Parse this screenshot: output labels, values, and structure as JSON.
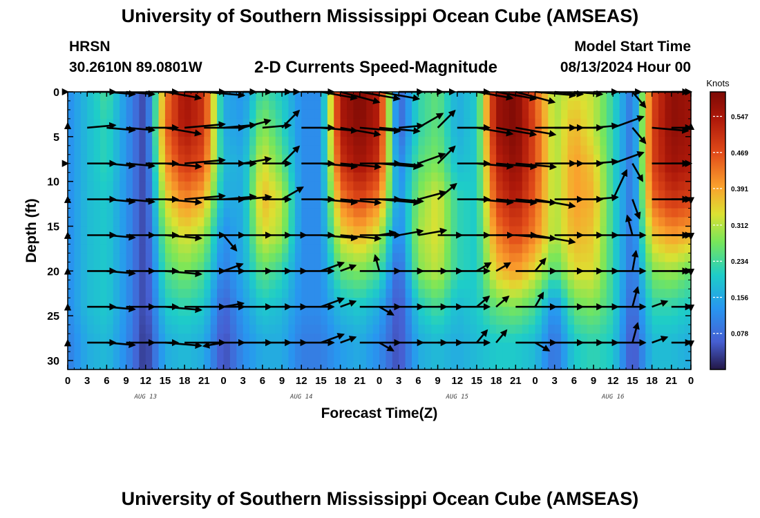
{
  "header": {
    "title": "University of Southern Mississippi Ocean Cube (AMSEAS)",
    "station": "HRSN",
    "coords": "30.2610N  89.0801W",
    "subtitle": "2-D Currents Speed-Magnitude",
    "model_label": "Model Start Time",
    "model_start": "08/13/2024 Hour 00"
  },
  "footer": {
    "title": "University of Southern Mississippi Ocean Cube (AMSEAS)"
  },
  "chart_data": {
    "type": "heatmap",
    "title": "2-D Currents Speed-Magnitude",
    "xlabel": "Forecast Time(Z)",
    "ylabel": "Depth (ft)",
    "xlim": [
      0,
      96
    ],
    "ylim": [
      31,
      0
    ],
    "x_ticks": [
      0,
      3,
      6,
      9,
      12,
      15,
      18,
      21,
      24,
      27,
      30,
      33,
      36,
      39,
      42,
      45,
      48,
      51,
      54,
      57,
      60,
      63,
      66,
      69,
      72,
      75,
      78,
      81,
      84,
      87,
      90,
      93,
      96
    ],
    "x_tick_labels": [
      "0",
      "3",
      "6",
      "9",
      "12",
      "15",
      "18",
      "21",
      "0",
      "3",
      "6",
      "9",
      "12",
      "15",
      "18",
      "21",
      "0",
      "3",
      "6",
      "9",
      "12",
      "15",
      "18",
      "21",
      "0",
      "3",
      "6",
      "9",
      "12",
      "15",
      "18",
      "21",
      "0"
    ],
    "y_ticks": [
      0,
      5,
      10,
      15,
      20,
      25,
      30
    ],
    "y_tick_labels": [
      "0",
      "5",
      "10",
      "15",
      "20",
      "25",
      "30"
    ],
    "date_labels": [
      {
        "hour": 12,
        "label": "AUG 13"
      },
      {
        "hour": 36,
        "label": "AUG 14"
      },
      {
        "hour": 60,
        "label": "AUG 15"
      },
      {
        "hour": 84,
        "label": "AUG 16"
      }
    ],
    "colorbar": {
      "label": "Knots",
      "min": 0,
      "max": 0.6,
      "ticks": [
        0.078,
        0.156,
        0.234,
        0.312,
        0.391,
        0.469,
        0.547
      ],
      "tick_labels": [
        "0.078",
        "0.156",
        "0.234",
        "0.312",
        "0.391",
        "0.469",
        "0.547"
      ]
    },
    "depths_ft": [
      0,
      4,
      8,
      12,
      16,
      20,
      24,
      28
    ],
    "hours": [
      0,
      3,
      6,
      9,
      12,
      15,
      18,
      21,
      24,
      27,
      30,
      33,
      36,
      39,
      42,
      45,
      48,
      51,
      54,
      57,
      60,
      63,
      66,
      69,
      72,
      75,
      78,
      81,
      84,
      87,
      90,
      93,
      96
    ],
    "speed_knots": [
      [
        0.12,
        0.18,
        0.24,
        0.13,
        0.03,
        0.42,
        0.56,
        0.5,
        0.16,
        0.13,
        0.24,
        0.2,
        0.12,
        0.12,
        0.55,
        0.6,
        0.53,
        0.06,
        0.22,
        0.26,
        0.16,
        0.2,
        0.56,
        0.6,
        0.45,
        0.3,
        0.34,
        0.32,
        0.22,
        0.08,
        0.47,
        0.58,
        0.56
      ],
      [
        0.12,
        0.18,
        0.22,
        0.13,
        0.03,
        0.44,
        0.55,
        0.5,
        0.16,
        0.14,
        0.29,
        0.22,
        0.12,
        0.12,
        0.54,
        0.59,
        0.53,
        0.06,
        0.22,
        0.26,
        0.16,
        0.2,
        0.56,
        0.6,
        0.47,
        0.3,
        0.38,
        0.32,
        0.22,
        0.08,
        0.48,
        0.58,
        0.56
      ],
      [
        0.12,
        0.18,
        0.22,
        0.13,
        0.03,
        0.4,
        0.5,
        0.46,
        0.18,
        0.16,
        0.34,
        0.26,
        0.12,
        0.12,
        0.5,
        0.56,
        0.5,
        0.1,
        0.25,
        0.28,
        0.18,
        0.2,
        0.52,
        0.58,
        0.47,
        0.3,
        0.4,
        0.36,
        0.22,
        0.08,
        0.48,
        0.56,
        0.54
      ],
      [
        0.12,
        0.18,
        0.2,
        0.13,
        0.03,
        0.34,
        0.42,
        0.38,
        0.16,
        0.16,
        0.38,
        0.32,
        0.12,
        0.12,
        0.42,
        0.48,
        0.42,
        0.12,
        0.28,
        0.34,
        0.22,
        0.2,
        0.48,
        0.54,
        0.45,
        0.3,
        0.4,
        0.38,
        0.22,
        0.08,
        0.44,
        0.5,
        0.48
      ],
      [
        0.12,
        0.18,
        0.2,
        0.13,
        0.03,
        0.28,
        0.34,
        0.3,
        0.12,
        0.16,
        0.34,
        0.3,
        0.12,
        0.12,
        0.34,
        0.38,
        0.32,
        0.1,
        0.3,
        0.34,
        0.22,
        0.2,
        0.42,
        0.48,
        0.42,
        0.3,
        0.38,
        0.36,
        0.22,
        0.08,
        0.36,
        0.4,
        0.38
      ],
      [
        0.12,
        0.18,
        0.2,
        0.13,
        0.03,
        0.24,
        0.28,
        0.24,
        0.1,
        0.16,
        0.26,
        0.22,
        0.12,
        0.12,
        0.26,
        0.28,
        0.24,
        0.06,
        0.28,
        0.32,
        0.22,
        0.2,
        0.36,
        0.4,
        0.34,
        0.24,
        0.34,
        0.34,
        0.22,
        0.08,
        0.28,
        0.3,
        0.26
      ],
      [
        0.12,
        0.18,
        0.2,
        0.13,
        0.03,
        0.2,
        0.22,
        0.2,
        0.06,
        0.14,
        0.2,
        0.18,
        0.12,
        0.12,
        0.18,
        0.2,
        0.16,
        0.04,
        0.2,
        0.24,
        0.18,
        0.2,
        0.26,
        0.28,
        0.24,
        0.12,
        0.26,
        0.28,
        0.22,
        0.06,
        0.22,
        0.22,
        0.2
      ],
      [
        0.1,
        0.16,
        0.18,
        0.12,
        0.02,
        0.16,
        0.18,
        0.16,
        0.04,
        0.12,
        0.16,
        0.16,
        0.1,
        0.1,
        0.14,
        0.16,
        0.12,
        0.04,
        0.16,
        0.18,
        0.16,
        0.18,
        0.2,
        0.2,
        0.18,
        0.08,
        0.2,
        0.22,
        0.2,
        0.04,
        0.18,
        0.18,
        0.16
      ]
    ],
    "vector_direction_deg": [
      [
        275,
        85,
        95,
        95,
        90,
        100,
        90,
        95,
        90,
        85,
        85,
        45,
        90,
        100,
        105,
        100,
        100,
        80,
        60,
        45,
        90,
        100,
        100,
        105,
        95,
        95,
        95,
        80,
        60,
        140,
        90,
        85,
        85
      ],
      [
        280,
        85,
        95,
        95,
        90,
        100,
        85,
        90,
        85,
        75,
        85,
        45,
        90,
        95,
        100,
        95,
        95,
        85,
        60,
        45,
        90,
        100,
        100,
        100,
        90,
        90,
        90,
        85,
        70,
        140,
        95,
        90,
        85
      ],
      [
        270,
        90,
        95,
        95,
        90,
        95,
        85,
        90,
        90,
        80,
        90,
        45,
        90,
        95,
        95,
        90,
        95,
        95,
        70,
        45,
        90,
        95,
        95,
        95,
        90,
        90,
        90,
        85,
        70,
        150,
        90,
        90,
        90
      ],
      [
        275,
        90,
        95,
        95,
        90,
        95,
        85,
        90,
        85,
        85,
        90,
        60,
        90,
        95,
        95,
        90,
        95,
        95,
        75,
        50,
        90,
        95,
        95,
        95,
        100,
        90,
        90,
        85,
        25,
        160,
        90,
        90,
        95
      ],
      [
        275,
        90,
        95,
        90,
        90,
        95,
        90,
        90,
        140,
        90,
        90,
        90,
        90,
        95,
        95,
        90,
        80,
        80,
        80,
        90,
        90,
        90,
        90,
        95,
        100,
        90,
        90,
        90,
        90,
        345,
        90,
        90,
        95
      ],
      [
        275,
        90,
        95,
        90,
        90,
        95,
        90,
        90,
        70,
        90,
        90,
        90,
        90,
        70,
        70,
        90,
        345,
        90,
        90,
        90,
        90,
        60,
        60,
        90,
        40,
        90,
        90,
        90,
        90,
        10,
        90,
        90,
        95
      ],
      [
        275,
        90,
        95,
        90,
        90,
        95,
        90,
        90,
        80,
        90,
        90,
        90,
        90,
        70,
        70,
        90,
        120,
        90,
        90,
        90,
        90,
        50,
        50,
        90,
        30,
        90,
        90,
        90,
        90,
        15,
        70,
        90,
        95
      ],
      [
        275,
        90,
        95,
        90,
        90,
        95,
        90,
        90,
        260,
        90,
        90,
        90,
        90,
        70,
        70,
        90,
        120,
        90,
        90,
        90,
        90,
        40,
        40,
        90,
        120,
        90,
        90,
        90,
        90,
        15,
        70,
        90,
        95
      ]
    ],
    "vector_speed_fraction": [
      [
        0.6,
        0.7,
        0.7,
        0.7,
        0.8,
        0.9,
        1.0,
        1.0,
        0.8,
        0.7,
        0.7,
        0.6,
        0.8,
        0.9,
        1.0,
        1.0,
        1.0,
        0.6,
        0.7,
        0.6,
        0.8,
        0.9,
        1.0,
        1.0,
        1.0,
        0.7,
        0.7,
        0.6,
        0.8,
        0.5,
        0.9,
        1.0,
        1.0
      ],
      [
        0.6,
        0.7,
        0.7,
        0.7,
        0.8,
        0.9,
        1.0,
        1.0,
        0.8,
        0.7,
        0.7,
        0.6,
        0.8,
        0.9,
        1.0,
        1.0,
        1.0,
        0.6,
        0.7,
        0.6,
        0.8,
        0.9,
        1.0,
        1.0,
        1.0,
        0.7,
        0.7,
        0.6,
        0.8,
        0.5,
        0.9,
        1.0,
        1.0
      ],
      [
        0.6,
        0.7,
        0.7,
        0.7,
        0.8,
        0.9,
        1.0,
        1.0,
        0.8,
        0.7,
        0.7,
        0.6,
        0.8,
        0.9,
        1.0,
        1.0,
        1.0,
        0.6,
        0.7,
        0.6,
        0.8,
        0.9,
        1.0,
        1.0,
        1.0,
        0.7,
        0.7,
        0.6,
        0.8,
        0.5,
        0.9,
        1.0,
        1.0
      ],
      [
        0.6,
        0.7,
        0.7,
        0.7,
        0.8,
        0.9,
        1.0,
        1.0,
        0.8,
        0.7,
        0.7,
        0.6,
        0.8,
        0.9,
        1.0,
        1.0,
        1.0,
        0.6,
        0.7,
        0.6,
        0.8,
        0.9,
        1.0,
        1.0,
        1.0,
        0.7,
        0.7,
        0.6,
        0.8,
        0.5,
        0.9,
        1.0,
        1.0
      ],
      [
        0.6,
        0.7,
        0.7,
        0.7,
        0.8,
        0.9,
        1.0,
        1.0,
        0.5,
        0.7,
        0.7,
        0.6,
        0.8,
        0.9,
        1.0,
        1.0,
        0.4,
        0.6,
        0.7,
        0.6,
        0.8,
        0.9,
        1.0,
        1.0,
        1.0,
        0.7,
        0.7,
        0.6,
        0.8,
        0.5,
        0.9,
        1.0,
        1.0
      ],
      [
        0.6,
        0.7,
        0.7,
        0.7,
        0.8,
        0.9,
        1.0,
        1.0,
        0.5,
        0.7,
        0.7,
        0.6,
        0.8,
        0.6,
        0.4,
        1.0,
        0.4,
        0.6,
        0.7,
        0.6,
        0.8,
        0.4,
        0.4,
        1.0,
        0.4,
        0.7,
        0.7,
        0.6,
        0.8,
        0.5,
        0.9,
        1.0,
        1.0
      ],
      [
        0.6,
        0.7,
        0.7,
        0.7,
        0.8,
        0.9,
        1.0,
        1.0,
        0.5,
        0.7,
        0.7,
        0.6,
        0.8,
        0.6,
        0.4,
        1.0,
        0.4,
        0.6,
        0.7,
        0.6,
        0.8,
        0.4,
        0.4,
        1.0,
        0.4,
        0.7,
        0.7,
        0.6,
        0.8,
        0.5,
        0.4,
        1.0,
        1.0
      ],
      [
        0.6,
        0.7,
        0.7,
        0.7,
        0.8,
        0.9,
        1.0,
        1.0,
        0.5,
        0.7,
        0.7,
        0.6,
        0.8,
        0.6,
        0.4,
        1.0,
        0.4,
        0.6,
        0.7,
        0.6,
        0.8,
        0.4,
        0.4,
        1.0,
        0.4,
        0.7,
        0.7,
        0.6,
        0.8,
        0.5,
        0.4,
        1.0,
        1.0
      ]
    ]
  }
}
